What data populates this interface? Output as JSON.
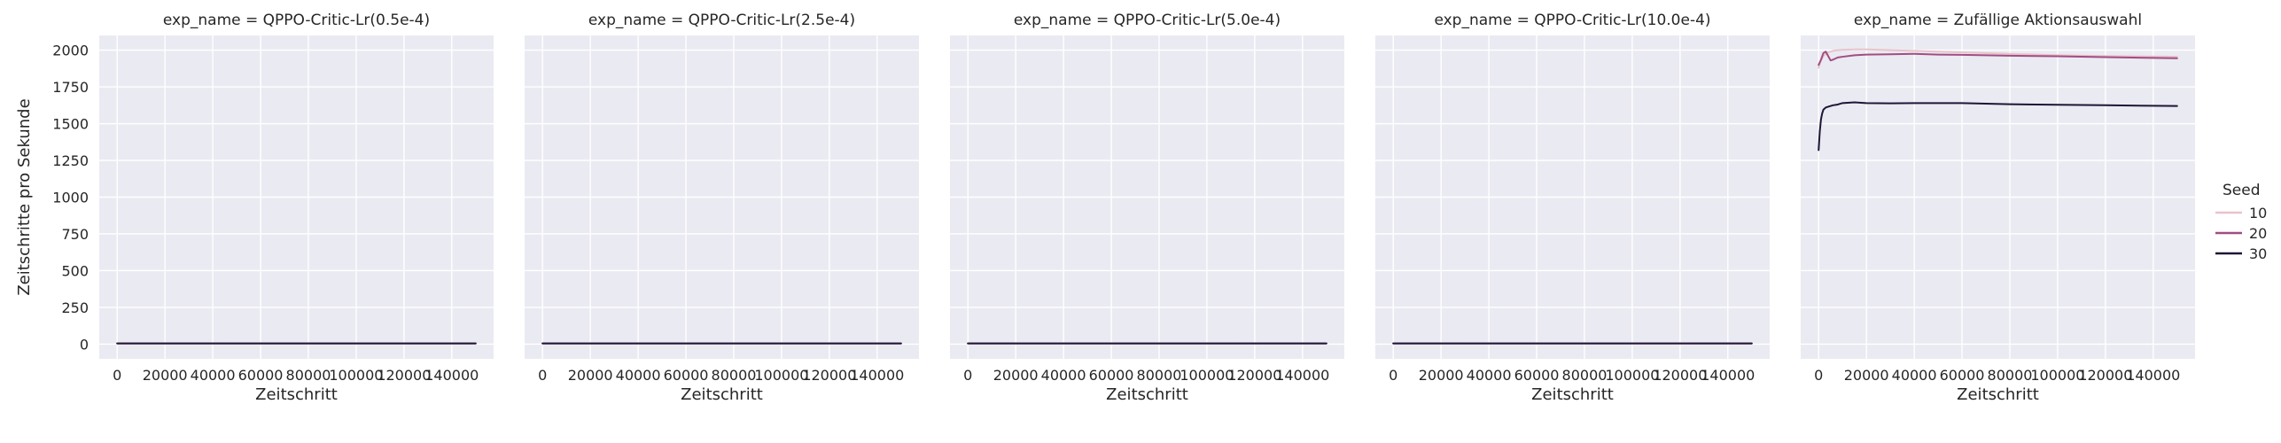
{
  "chart_data": {
    "type": "line",
    "ylabel": "Zeitschritte pro Sekunde",
    "xlabel": "Zeitschritt",
    "xlim": [
      -7500,
      157500
    ],
    "ylim": [
      -100,
      2100
    ],
    "xticks": [
      0,
      20000,
      40000,
      60000,
      80000,
      100000,
      120000,
      140000
    ],
    "xtick_labels": [
      "0",
      "20000",
      "40000",
      "60000",
      "80000",
      "100000",
      "120000",
      "140000"
    ],
    "yticks": [
      0,
      250,
      500,
      750,
      1000,
      1250,
      1500,
      1750,
      2000
    ],
    "ytick_labels": [
      "0",
      "250",
      "500",
      "750",
      "1000",
      "1250",
      "1500",
      "1750",
      "2000"
    ],
    "grid": true,
    "legend": {
      "title": "Seed",
      "placement": "right",
      "entries": [
        {
          "label": "10",
          "color": "#e9c3ca"
        },
        {
          "label": "20",
          "color": "#a24d83"
        },
        {
          "label": "30",
          "color": "#1f1535"
        }
      ]
    },
    "panels": [
      {
        "title": "exp_name = QPPO-Critic-Lr(0.5e-4)",
        "series": [
          {
            "seed": "10",
            "color": "#e9c3ca",
            "x": [
              0,
              150000
            ],
            "y": [
              5,
              5
            ]
          },
          {
            "seed": "20",
            "color": "#a24d83",
            "x": [
              0,
              150000
            ],
            "y": [
              5,
              5
            ]
          },
          {
            "seed": "30",
            "color": "#1f1535",
            "x": [
              0,
              150000
            ],
            "y": [
              5,
              5
            ]
          }
        ]
      },
      {
        "title": "exp_name = QPPO-Critic-Lr(2.5e-4)",
        "series": [
          {
            "seed": "10",
            "color": "#e9c3ca",
            "x": [
              0,
              150000
            ],
            "y": [
              5,
              5
            ]
          },
          {
            "seed": "20",
            "color": "#a24d83",
            "x": [
              0,
              150000
            ],
            "y": [
              5,
              5
            ]
          },
          {
            "seed": "30",
            "color": "#1f1535",
            "x": [
              0,
              150000
            ],
            "y": [
              5,
              5
            ]
          }
        ]
      },
      {
        "title": "exp_name = QPPO-Critic-Lr(5.0e-4)",
        "series": [
          {
            "seed": "10",
            "color": "#e9c3ca",
            "x": [
              0,
              150000
            ],
            "y": [
              5,
              5
            ]
          },
          {
            "seed": "20",
            "color": "#a24d83",
            "x": [
              0,
              150000
            ],
            "y": [
              5,
              5
            ]
          },
          {
            "seed": "30",
            "color": "#1f1535",
            "x": [
              0,
              150000
            ],
            "y": [
              5,
              5
            ]
          }
        ]
      },
      {
        "title": "exp_name = QPPO-Critic-Lr(10.0e-4)",
        "series": [
          {
            "seed": "10",
            "color": "#e9c3ca",
            "x": [
              0,
              150000
            ],
            "y": [
              5,
              5
            ]
          },
          {
            "seed": "20",
            "color": "#a24d83",
            "x": [
              0,
              150000
            ],
            "y": [
              5,
              5
            ]
          },
          {
            "seed": "30",
            "color": "#1f1535",
            "x": [
              0,
              150000
            ],
            "y": [
              5,
              5
            ]
          }
        ]
      },
      {
        "title": "exp_name = Zufällige Aktionsauswahl",
        "series": [
          {
            "seed": "10",
            "color": "#e9c3ca",
            "x": [
              0,
              1000,
              2000,
              4000,
              6000,
              8000,
              10000,
              15000,
              20000,
              30000,
              40000,
              60000,
              80000,
              100000,
              120000,
              150000
            ],
            "y": [
              1880,
              1930,
              1960,
              1985,
              1995,
              2000,
              2002,
              2005,
              2005,
              2000,
              1995,
              1985,
              1975,
              1965,
              1960,
              1955
            ]
          },
          {
            "seed": "20",
            "color": "#a24d83",
            "x": [
              0,
              1000,
              2000,
              3000,
              4000,
              5000,
              6000,
              8000,
              10000,
              15000,
              20000,
              30000,
              40000,
              50000,
              60000,
              80000,
              100000,
              120000,
              150000
            ],
            "y": [
              1900,
              1935,
              1980,
              1990,
              1960,
              1930,
              1935,
              1950,
              1955,
              1965,
              1970,
              1972,
              1975,
              1970,
              1968,
              1962,
              1958,
              1952,
              1945
            ]
          },
          {
            "seed": "30",
            "color": "#1f1535",
            "x": [
              0,
              500,
              1000,
              1500,
              2000,
              3000,
              4000,
              6000,
              8000,
              10000,
              15000,
              20000,
              30000,
              40000,
              60000,
              80000,
              100000,
              120000,
              150000
            ],
            "y": [
              1320,
              1450,
              1530,
              1570,
              1595,
              1610,
              1615,
              1625,
              1630,
              1640,
              1645,
              1640,
              1638,
              1640,
              1640,
              1632,
              1628,
              1625,
              1620
            ]
          }
        ]
      }
    ]
  }
}
